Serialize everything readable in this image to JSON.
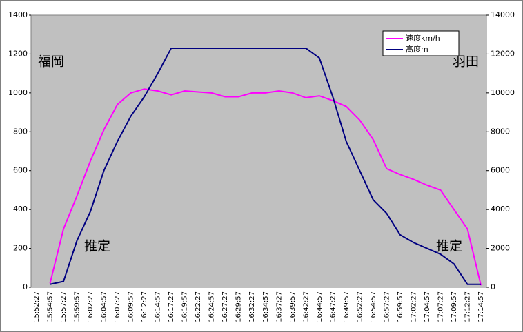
{
  "chart_data": {
    "type": "line",
    "categories": [
      "15:52:27",
      "15:54:57",
      "15:57:27",
      "15:59:57",
      "16:02:27",
      "16:04:57",
      "16:07:27",
      "16:09:57",
      "16:12:27",
      "16:14:57",
      "16:17:27",
      "16:19:57",
      "16:22:27",
      "16:24:57",
      "16:27:27",
      "16:29:57",
      "16:32:27",
      "16:34:57",
      "16:37:27",
      "16:39:57",
      "16:42:27",
      "16:44:57",
      "16:47:27",
      "16:49:57",
      "16:52:27",
      "16:54:57",
      "16:57:27",
      "16:59:57",
      "17:02:27",
      "17:04:57",
      "17:07:27",
      "17:09:57",
      "17:12:27",
      "17:14:57"
    ],
    "series": [
      {
        "name": "速度km/h",
        "color": "#ff00ff",
        "values": [
          null,
          20,
          300,
          470,
          650,
          810,
          940,
          1000,
          1020,
          1010,
          990,
          1010,
          1005,
          1000,
          980,
          980,
          1000,
          1000,
          1010,
          1000,
          975,
          985,
          960,
          930,
          860,
          760,
          610,
          580,
          555,
          525,
          500,
          400,
          300,
          10
        ]
      },
      {
        "name": "高度m",
        "color": "#000080",
        "axis": "y2",
        "values": [
          null,
          150,
          300,
          2400,
          3900,
          6000,
          7500,
          8800,
          9800,
          11000,
          12300,
          12300,
          12300,
          12300,
          12300,
          12300,
          12300,
          12300,
          12300,
          12300,
          12300,
          11800,
          9800,
          7500,
          6000,
          4500,
          3800,
          2700,
          2300,
          2000,
          1700,
          1200,
          150,
          150
        ]
      }
    ],
    "ylim": [
      0,
      1400
    ],
    "yticks": [
      0,
      200,
      400,
      600,
      800,
      1000,
      1200,
      1400
    ],
    "y2lim": [
      0,
      14000
    ],
    "y2ticks": [
      0,
      2000,
      4000,
      6000,
      8000,
      10000,
      12000,
      14000
    ],
    "annotations": [
      "福岡",
      "羽田",
      "推定",
      "推定"
    ],
    "plot_background": "#c0c0c0"
  }
}
